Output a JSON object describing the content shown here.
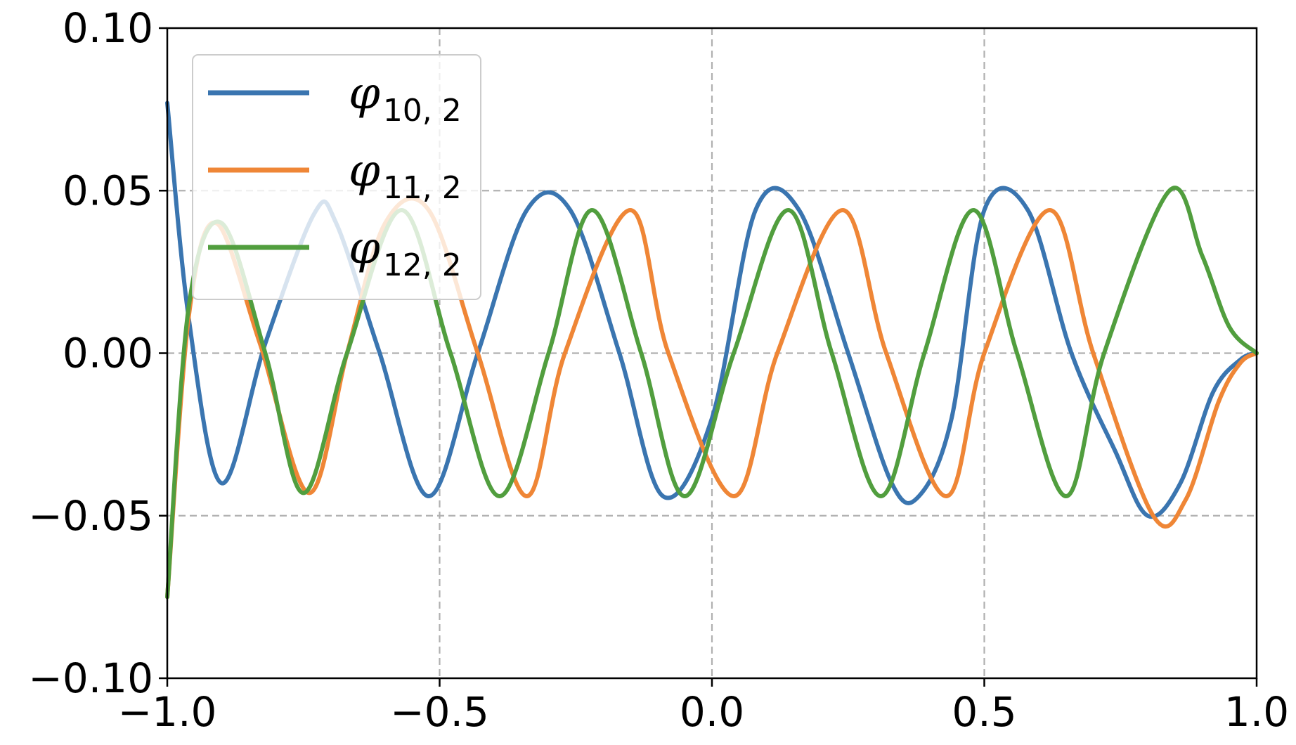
{
  "chart_data": {
    "type": "line",
    "title": "",
    "xlabel": "",
    "ylabel": "",
    "xlim": [
      -1.0,
      1.0
    ],
    "ylim": [
      -0.1,
      0.1
    ],
    "grid": true,
    "grid_style": "dashed",
    "legend_position": "top-left",
    "x_ticks": [
      -1.0,
      -0.5,
      0.0,
      0.5,
      1.0
    ],
    "x_tick_labels": [
      "−1.0",
      "−0.5",
      "0.0",
      "0.5",
      "1.0"
    ],
    "y_ticks": [
      -0.1,
      -0.05,
      0.0,
      0.05,
      0.1
    ],
    "y_tick_labels": [
      "−0.10",
      "−0.05",
      "0.00",
      "0.05",
      "0.10"
    ],
    "series": [
      {
        "name": "φ",
        "subscript": "10, 2",
        "color": "#3a75b0",
        "x": [
          -1.0,
          -0.96,
          -0.9,
          -0.82,
          -0.73,
          -0.69,
          -0.61,
          -0.52,
          -0.43,
          -0.34,
          -0.26,
          -0.17,
          -0.09,
          0.0,
          0.08,
          0.16,
          0.25,
          0.33,
          0.38,
          0.44,
          0.5,
          0.58,
          0.66,
          0.74,
          0.8,
          0.86,
          0.92,
          0.97,
          1.0
        ],
        "y": [
          0.077,
          0.01,
          -0.04,
          0.003,
          0.043,
          0.04,
          0.0,
          -0.044,
          0.0,
          0.044,
          0.044,
          0.0,
          -0.044,
          -0.02,
          0.044,
          0.044,
          0.0,
          -0.04,
          -0.044,
          -0.02,
          0.044,
          0.044,
          0.0,
          -0.03,
          -0.05,
          -0.04,
          -0.012,
          -0.002,
          0.0
        ]
      },
      {
        "name": "φ",
        "subscript": "11, 2",
        "color": "#ef8636",
        "x": [
          -1.0,
          -0.96,
          -0.91,
          -0.83,
          -0.74,
          -0.67,
          -0.6,
          -0.52,
          -0.43,
          -0.34,
          -0.27,
          -0.15,
          -0.08,
          0.04,
          0.12,
          0.24,
          0.32,
          0.43,
          0.5,
          0.62,
          0.7,
          0.81,
          0.87,
          0.93,
          0.97,
          1.0
        ],
        "y": [
          -0.075,
          0.012,
          0.04,
          0.003,
          -0.043,
          0.0,
          0.04,
          0.044,
          0.0,
          -0.044,
          0.0,
          0.044,
          0.0,
          -0.044,
          0.0,
          0.044,
          0.0,
          -0.044,
          0.0,
          0.044,
          0.0,
          -0.05,
          -0.045,
          -0.015,
          -0.003,
          0.0
        ]
      },
      {
        "name": "φ",
        "subscript": "12, 2",
        "color": "#519e3e",
        "x": [
          -1.0,
          -0.96,
          -0.9,
          -0.82,
          -0.75,
          -0.67,
          -0.57,
          -0.48,
          -0.39,
          -0.3,
          -0.22,
          -0.13,
          -0.05,
          0.04,
          0.14,
          0.22,
          0.31,
          0.39,
          0.48,
          0.56,
          0.65,
          0.72,
          0.84,
          0.9,
          0.95,
          1.0
        ],
        "y": [
          -0.075,
          0.015,
          0.04,
          0.0,
          -0.043,
          0.0,
          0.044,
          0.0,
          -0.044,
          0.0,
          0.044,
          0.0,
          -0.044,
          0.0,
          0.044,
          0.0,
          -0.044,
          0.0,
          0.044,
          0.0,
          -0.044,
          0.0,
          0.05,
          0.03,
          0.008,
          0.0
        ]
      }
    ]
  }
}
